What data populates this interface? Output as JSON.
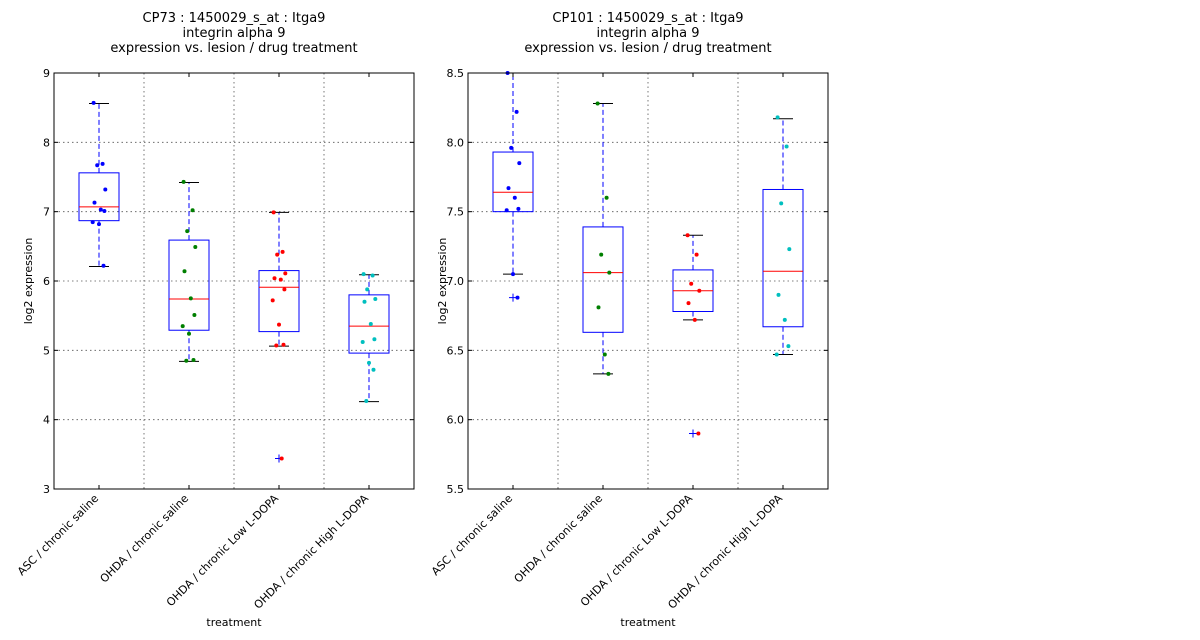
{
  "chart_data": [
    {
      "type": "box",
      "title_lines": [
        "CP73 : 1450029_s_at : Itga9",
        "integrin alpha 9",
        "expression vs. lesion / drug treatment"
      ],
      "xlabel": "treatment",
      "ylabel": "log2 expression",
      "ylim": [
        3,
        9
      ],
      "yticks": [
        "3",
        "4",
        "5",
        "6",
        "7",
        "8",
        "9"
      ],
      "grid": true,
      "categories": [
        "ASC / chronic saline",
        "OHDA / chronic saline",
        "OHDA / chronic Low L-DOPA",
        "OHDA / chronic High L-DOPA"
      ],
      "series": [
        {
          "q1": 6.87,
          "median": 7.07,
          "q3": 7.56,
          "whisker_low": 6.21,
          "whisker_high": 8.56,
          "outliers": [],
          "color": "#0000ff",
          "points": [
            8.57,
            7.69,
            7.67,
            7.32,
            7.13,
            7.03,
            7.01,
            6.85,
            6.82,
            6.22
          ]
        },
        {
          "q1": 5.29,
          "median": 5.74,
          "q3": 6.59,
          "whisker_low": 4.84,
          "whisker_high": 7.42,
          "outliers": [],
          "color": "#007f00",
          "points": [
            7.43,
            7.02,
            6.72,
            6.49,
            6.14,
            5.75,
            5.51,
            5.35,
            5.24,
            4.86,
            4.85
          ]
        },
        {
          "q1": 5.27,
          "median": 5.91,
          "q3": 6.15,
          "whisker_low": 5.06,
          "whisker_high": 6.99,
          "outliers": [
            3.44
          ],
          "color": "#ff0000",
          "points": [
            6.99,
            6.42,
            6.38,
            6.11,
            6.04,
            6.02,
            5.88,
            5.72,
            5.37,
            5.08,
            5.07,
            3.44
          ]
        },
        {
          "q1": 4.96,
          "median": 5.35,
          "q3": 5.8,
          "whisker_low": 4.26,
          "whisker_high": 6.09,
          "outliers": [],
          "color": "#00bfbf",
          "points": [
            6.1,
            6.08,
            5.88,
            5.74,
            5.7,
            5.38,
            5.16,
            5.12,
            4.82,
            4.72,
            4.27
          ]
        }
      ]
    },
    {
      "type": "box",
      "title_lines": [
        "CP101 : 1450029_s_at : Itga9",
        "integrin alpha 9",
        "expression vs. lesion / drug treatment"
      ],
      "xlabel": "treatment",
      "ylabel": "log2 expression",
      "ylim": [
        5.5,
        8.5
      ],
      "yticks": [
        "5.5",
        "6.0",
        "6.5",
        "7.0",
        "7.5",
        "8.0",
        "8.5"
      ],
      "grid": true,
      "categories": [
        "ASC / chronic saline",
        "OHDA / chronic saline",
        "OHDA / chronic Low L-DOPA",
        "OHDA / chronic High L-DOPA"
      ],
      "series": [
        {
          "q1": 7.5,
          "median": 7.64,
          "q3": 7.93,
          "whisker_low": 7.05,
          "whisker_high": 8.5,
          "outliers": [
            6.88
          ],
          "color": "#0000ff",
          "points": [
            8.5,
            8.22,
            7.96,
            7.85,
            7.67,
            7.6,
            7.52,
            7.51,
            7.05,
            6.88
          ]
        },
        {
          "q1": 6.63,
          "median": 7.06,
          "q3": 7.39,
          "whisker_low": 6.33,
          "whisker_high": 8.28,
          "outliers": [],
          "color": "#007f00",
          "points": [
            8.28,
            7.6,
            7.19,
            7.06,
            6.81,
            6.47,
            6.33
          ]
        },
        {
          "q1": 6.78,
          "median": 6.93,
          "q3": 7.08,
          "whisker_low": 6.72,
          "whisker_high": 7.33,
          "outliers": [
            5.9
          ],
          "color": "#ff0000",
          "points": [
            7.33,
            7.19,
            6.98,
            6.93,
            6.84,
            6.72,
            5.9
          ]
        },
        {
          "q1": 6.67,
          "median": 7.07,
          "q3": 7.66,
          "whisker_low": 6.47,
          "whisker_high": 8.17,
          "outliers": [],
          "color": "#00bfbf",
          "points": [
            8.18,
            7.97,
            7.56,
            7.23,
            6.9,
            6.72,
            6.53,
            6.47
          ]
        }
      ]
    }
  ]
}
